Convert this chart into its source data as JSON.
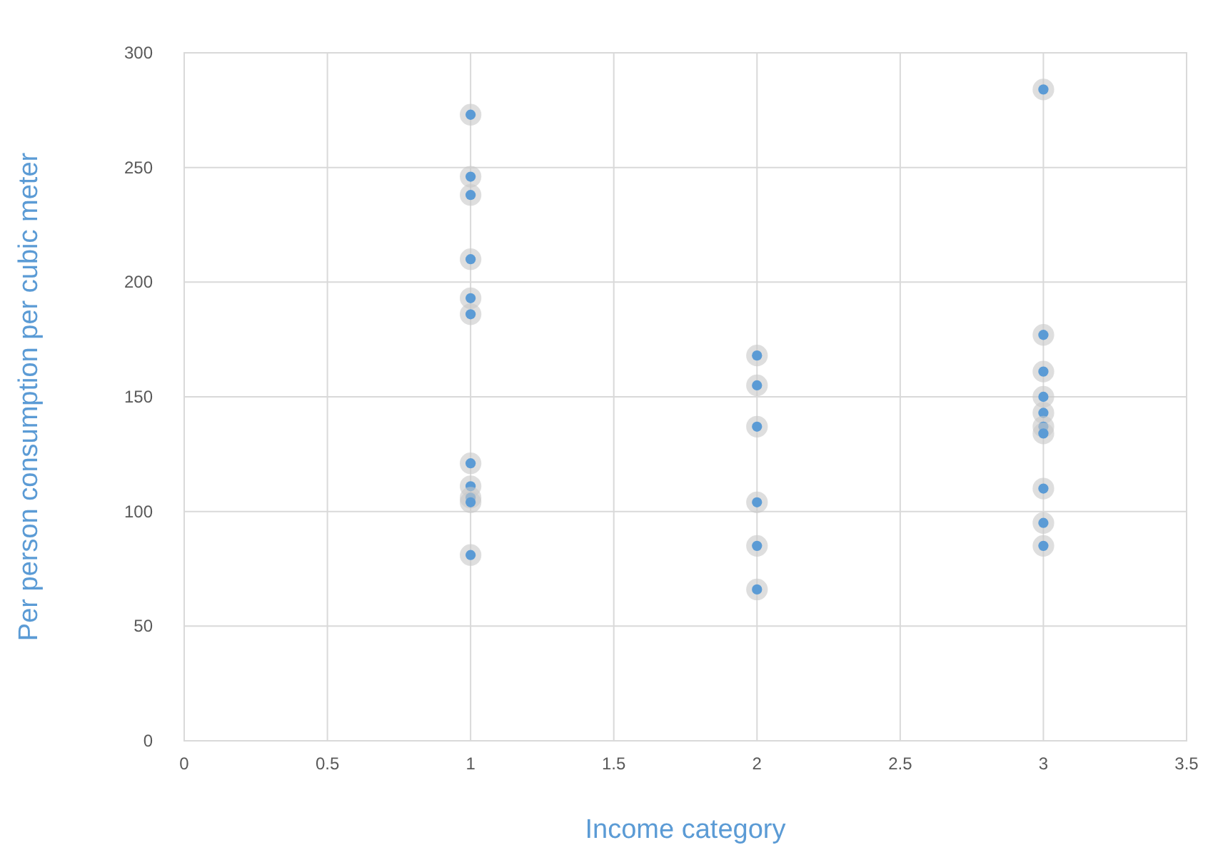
{
  "chart_data": {
    "type": "scatter",
    "xlabel": "Income category",
    "ylabel": "Per person consumption per cubic meter",
    "x": [
      1,
      1,
      1,
      1,
      1,
      1,
      1,
      1,
      1,
      1,
      1,
      2,
      2,
      2,
      2,
      2,
      2,
      3,
      3,
      3,
      3,
      3,
      3,
      3,
      3,
      3,
      3
    ],
    "values": [
      273,
      246,
      238,
      210,
      193,
      186,
      121,
      111,
      106,
      104,
      81,
      168,
      155,
      137,
      104,
      85,
      66,
      284,
      177,
      161,
      150,
      143,
      137,
      134,
      110,
      95,
      85
    ],
    "color": "#5b9bd5",
    "marker": "circle",
    "grid": true,
    "xlim": [
      0,
      3.5
    ],
    "xticks": [
      0,
      0.5,
      1,
      1.5,
      2,
      2.5,
      3,
      3.5
    ],
    "ylim": [
      0,
      300
    ],
    "yticks": [
      0,
      50,
      100,
      150,
      200,
      250,
      300
    ]
  }
}
